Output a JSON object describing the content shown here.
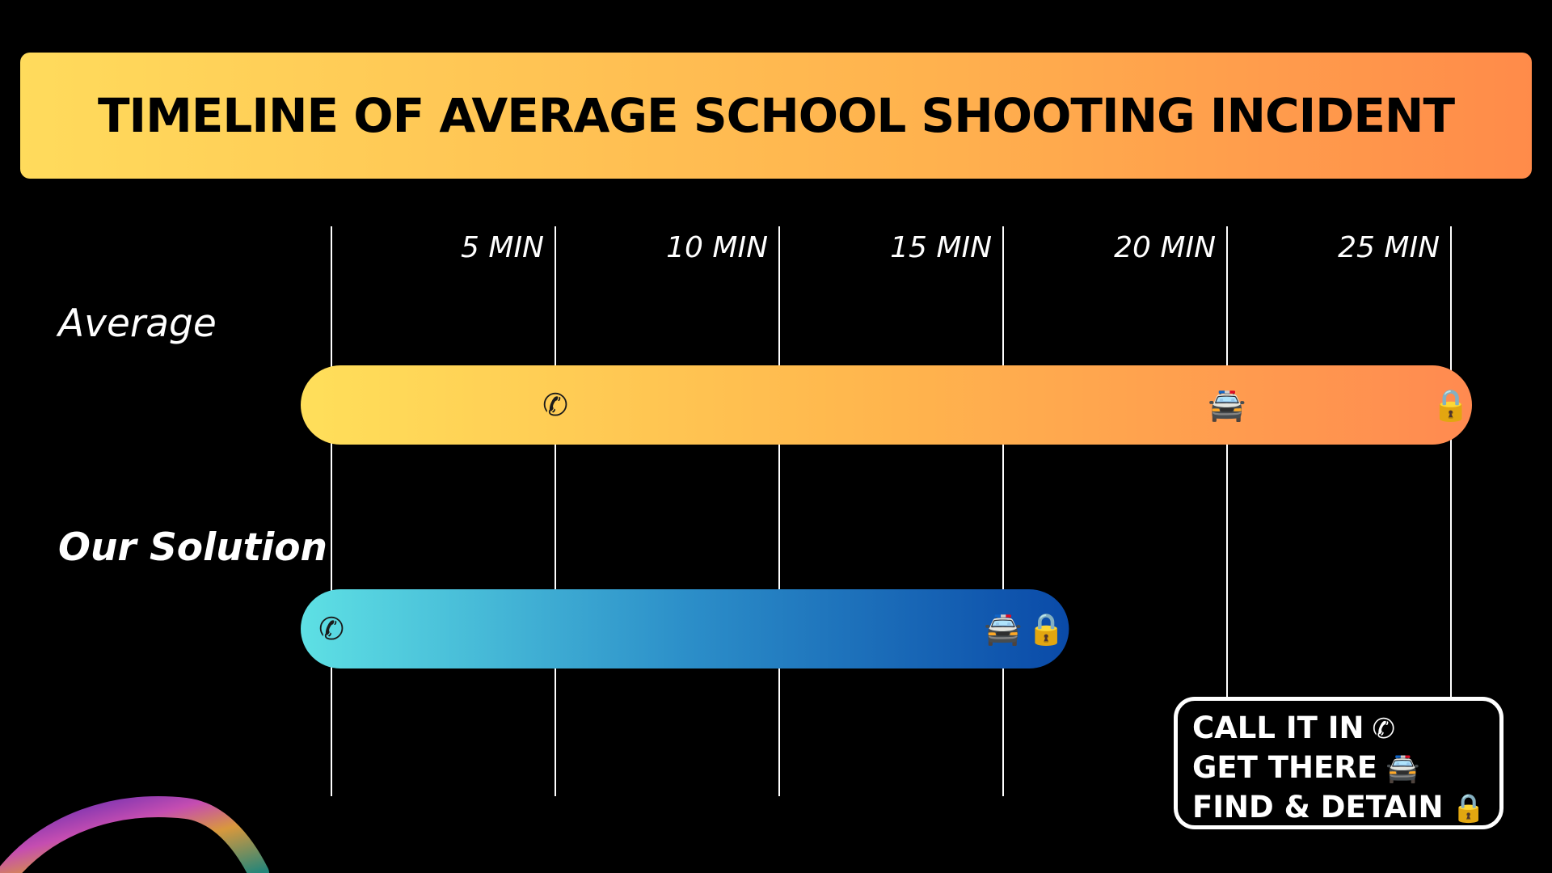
{
  "title": "TIMELINE OF AVERAGE SCHOOL SHOOTING INCIDENT",
  "chart_data": {
    "type": "timeline",
    "x_unit": "MIN",
    "xlim": [
      0,
      25
    ],
    "ticks": [
      {
        "value": 5,
        "label": "5 MIN"
      },
      {
        "value": 10,
        "label": "10 MIN"
      },
      {
        "value": 15,
        "label": "15 MIN"
      },
      {
        "value": 20,
        "label": "20 MIN"
      },
      {
        "value": 25,
        "label": "25 MIN"
      }
    ],
    "series": [
      {
        "name": "Average",
        "start": 0,
        "end": 25,
        "events": [
          {
            "event": "call",
            "x": 5,
            "icon": "phone-icon",
            "glyph": "✆"
          },
          {
            "event": "arrive",
            "x": 20,
            "icon": "police-car-icon",
            "glyph": "🚔"
          },
          {
            "event": "detain",
            "x": 25,
            "icon": "lock-icon",
            "glyph": "🔒"
          }
        ],
        "colors": [
          "#ffdf5a",
          "#ffb54d",
          "#ff8a50"
        ]
      },
      {
        "name": "Our Solution",
        "start": 0,
        "end": 16,
        "events": [
          {
            "event": "call",
            "x": 0,
            "icon": "phone-icon",
            "glyph": "✆"
          },
          {
            "event": "arrive",
            "x": 15,
            "icon": "police-car-icon",
            "glyph": "🚔"
          },
          {
            "event": "detain",
            "x": 16,
            "icon": "lock-icon",
            "glyph": "🔒"
          }
        ],
        "colors": [
          "#5ee0e4",
          "#2c8fc9",
          "#0a4aa8"
        ]
      }
    ]
  },
  "legend": [
    {
      "label": "CALL IT IN",
      "icon": "phone-icon",
      "glyph": "✆"
    },
    {
      "label": "GET THERE",
      "icon": "police-car-icon",
      "glyph": "🚔"
    },
    {
      "label": "FIND & DETAIN",
      "icon": "lock-icon",
      "glyph": "🔒"
    }
  ]
}
